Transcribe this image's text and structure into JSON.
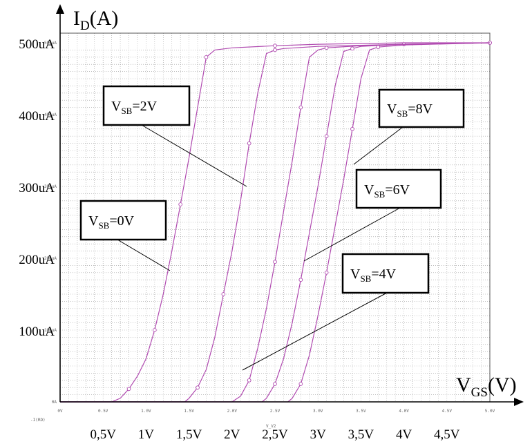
{
  "chart_data": {
    "type": "line",
    "y_axis_title": "I",
    "y_axis_title_sub": "D",
    "y_axis_title_unit": "(A)",
    "x_axis_title": "V",
    "x_axis_title_sub": "GS",
    "x_axis_title_unit": "(V)",
    "xlim": [
      0,
      5.0
    ],
    "ylim": [
      0,
      500
    ],
    "y_labels": [
      "500uA",
      "400uA",
      "300uA",
      "200uA",
      "100uA"
    ],
    "y_label_values": [
      500,
      400,
      300,
      200,
      100
    ],
    "x_labels": [
      "0,5V",
      "1V",
      "1,5V",
      "2V",
      "2,5V",
      "3V",
      "3,5V",
      "4V",
      "4,5V"
    ],
    "x_label_values": [
      0.5,
      1.0,
      1.5,
      2.0,
      2.5,
      3.0,
      3.5,
      4.0,
      4.5
    ],
    "sim_x_ticks": [
      "0V",
      "0.5V",
      "1.0V",
      "1.5V",
      "2.0V",
      "2.5V",
      "3.0V",
      "3.5V",
      "4.0V",
      "4.5V",
      "5.0V"
    ],
    "sim_y_ticks": [
      "0A",
      "100uA",
      "200uA",
      "300uA",
      "400uA",
      "500uA"
    ],
    "sim_legend": "-I(RD)",
    "sim_x_caption": "V_V2",
    "series": [
      {
        "name": "VSB=0V",
        "x": [
          0,
          0.6,
          0.7,
          0.8,
          0.9,
          1.0,
          1.1,
          1.2,
          1.3,
          1.4,
          1.5,
          1.6,
          1.7,
          1.8,
          2.0,
          2.5,
          3.0,
          4.0,
          5.0
        ],
        "y": [
          0,
          0,
          5,
          18,
          36,
          60,
          100,
          150,
          210,
          275,
          340,
          410,
          480,
          490,
          493,
          496,
          498,
          500,
          500
        ]
      },
      {
        "name": "VSB=2V",
        "x": [
          0,
          1.45,
          1.5,
          1.6,
          1.7,
          1.8,
          1.9,
          2.0,
          2.1,
          2.2,
          2.3,
          2.4,
          2.5,
          2.6,
          3.0,
          4.0,
          5.0
        ],
        "y": [
          0,
          0,
          5,
          20,
          45,
          90,
          150,
          210,
          280,
          360,
          430,
          485,
          490,
          492,
          495,
          498,
          500
        ]
      },
      {
        "name": "VSB=4V",
        "x": [
          0,
          2.0,
          2.1,
          2.2,
          2.3,
          2.4,
          2.5,
          2.6,
          2.7,
          2.8,
          2.9,
          3.0,
          3.1,
          3.5,
          4.0,
          5.0
        ],
        "y": [
          0,
          0,
          8,
          30,
          75,
          130,
          195,
          265,
          335,
          410,
          480,
          490,
          493,
          496,
          498,
          500
        ]
      },
      {
        "name": "VSB=6V",
        "x": [
          0,
          2.35,
          2.4,
          2.5,
          2.6,
          2.7,
          2.8,
          2.9,
          3.0,
          3.1,
          3.2,
          3.3,
          3.4,
          3.5,
          4.0,
          5.0
        ],
        "y": [
          0,
          0,
          5,
          25,
          60,
          110,
          170,
          235,
          300,
          370,
          440,
          488,
          492,
          495,
          498,
          500
        ]
      },
      {
        "name": "VSB=8V",
        "x": [
          0,
          2.65,
          2.7,
          2.8,
          2.9,
          3.0,
          3.1,
          3.2,
          3.3,
          3.4,
          3.5,
          3.6,
          3.7,
          4.0,
          5.0
        ],
        "y": [
          0,
          0,
          5,
          25,
          65,
          120,
          180,
          245,
          310,
          380,
          450,
          490,
          494,
          497,
          500
        ]
      }
    ],
    "annotations": [
      {
        "text": "V",
        "sub": "SB",
        "rest": "=2V"
      },
      {
        "text": "V",
        "sub": "SB",
        "rest": "=8V"
      },
      {
        "text": "V",
        "sub": "SB",
        "rest": "=6V"
      },
      {
        "text": "V",
        "sub": "SB",
        "rest": "=0V"
      },
      {
        "text": "V",
        "sub": "SB",
        "rest": "=4V"
      }
    ],
    "colors": {
      "curve": "#b04ab0",
      "grid": "#9a9a9a",
      "axis": "#000000"
    }
  }
}
